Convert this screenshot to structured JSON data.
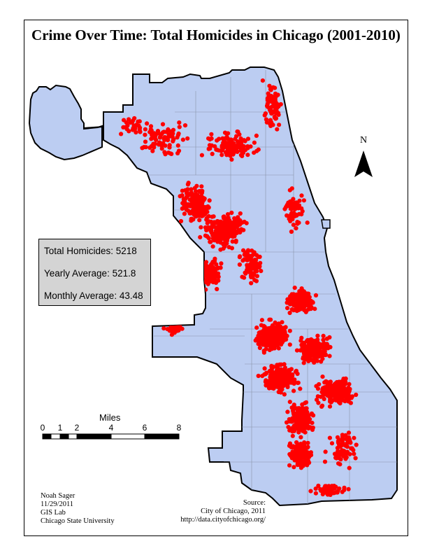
{
  "title": "Crime Over Time: Total Homicides in Chicago (2001-2010)",
  "colors": {
    "land": "#bccdf2",
    "boundary": "#000000",
    "district_lines": "#8a93a8",
    "incident": "#ff0000",
    "stats_box": "#d4d4d4"
  },
  "stats": {
    "total_homicides": "Total Homicides: 5218",
    "yearly_average": "Yearly Average: 521.8",
    "monthly_average": "Monthly Average: 43.48"
  },
  "north_arrow": {
    "label": "N"
  },
  "scale_bar": {
    "title": "Miles",
    "ticks": [
      "0",
      "1",
      "2",
      "4",
      "6",
      "8"
    ]
  },
  "credits": {
    "author": "Noah Sager",
    "date": "11/29/2011",
    "lab": "GIS Lab",
    "university": "Chicago State University",
    "source_label": "Source:",
    "source_org": "City of Chicago, 2011",
    "source_url": "http://data.cityofchicago.org/"
  }
}
